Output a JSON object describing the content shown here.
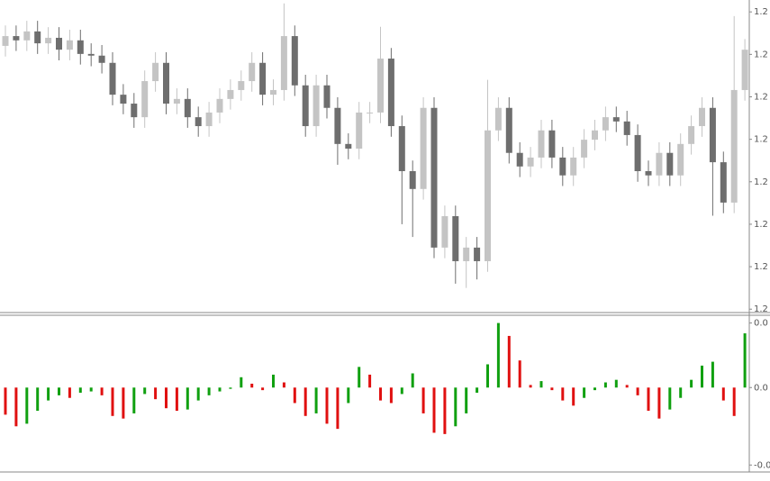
{
  "chart_data": [
    {
      "type": "candlestick",
      "open": [
        1.2282,
        1.22843,
        1.22833,
        1.22854,
        1.22826,
        1.22839,
        1.22811,
        1.22833,
        1.22801,
        1.22797,
        1.2278,
        1.22705,
        1.22684,
        1.22652,
        1.22737,
        1.2278,
        1.22684,
        1.22695,
        1.22652,
        1.22631,
        1.22663,
        1.22695,
        1.22716,
        1.22737,
        1.2278,
        1.22705,
        1.22716,
        1.22843,
        1.22727,
        1.22631,
        1.22727,
        1.22674,
        1.22589,
        1.22578,
        1.22663,
        1.22663,
        1.2279,
        1.22631,
        1.22525,
        1.22483,
        1.22674,
        1.22345,
        1.22419,
        1.22313,
        1.22345,
        1.22313,
        1.22621,
        1.22674,
        1.22568,
        1.22536,
        1.22557,
        1.22621,
        1.22557,
        1.22515,
        1.22557,
        1.22599,
        1.22621,
        1.22652,
        1.22642,
        1.2261,
        1.22525,
        1.22515,
        1.22568,
        1.22515,
        1.22589,
        1.22631,
        1.22674,
        1.22546,
        1.22451,
        1.22716
      ],
      "high": [
        1.22868,
        1.22868,
        1.22879,
        1.22879,
        1.22864,
        1.22864,
        1.22858,
        1.22858,
        1.22826,
        1.22822,
        1.22805,
        1.2273,
        1.22709,
        1.22762,
        1.22805,
        1.22805,
        1.2272,
        1.2272,
        1.22677,
        1.22688,
        1.2272,
        1.22741,
        1.22762,
        1.22805,
        1.22805,
        1.22741,
        1.2292,
        1.22868,
        1.22752,
        1.22752,
        1.22752,
        1.22699,
        1.22614,
        1.22688,
        1.22688,
        1.22865,
        1.22815,
        1.22656,
        1.2255,
        1.22699,
        1.22699,
        1.22444,
        1.22444,
        1.2237,
        1.2237,
        1.2274,
        1.22699,
        1.22699,
        1.22593,
        1.22582,
        1.22646,
        1.22646,
        1.22582,
        1.22582,
        1.22624,
        1.22646,
        1.22677,
        1.22677,
        1.22667,
        1.22635,
        1.2255,
        1.22593,
        1.22593,
        1.22614,
        1.22656,
        1.22699,
        1.22699,
        1.22571,
        1.2289,
        1.22836
      ],
      "low": [
        1.22795,
        1.22808,
        1.22808,
        1.22801,
        1.22801,
        1.22786,
        1.22786,
        1.22776,
        1.22772,
        1.22755,
        1.2268,
        1.22659,
        1.22627,
        1.22627,
        1.22712,
        1.22659,
        1.22659,
        1.22627,
        1.22606,
        1.22606,
        1.22638,
        1.2267,
        1.22691,
        1.22712,
        1.2268,
        1.2268,
        1.22691,
        1.22702,
        1.22606,
        1.22606,
        1.22649,
        1.2254,
        1.22553,
        1.22553,
        1.22638,
        1.22638,
        1.22606,
        1.224,
        1.2237,
        1.22458,
        1.2232,
        1.2232,
        1.2226,
        1.2225,
        1.2227,
        1.22288,
        1.22596,
        1.22543,
        1.22511,
        1.22511,
        1.22532,
        1.22532,
        1.2249,
        1.2249,
        1.22532,
        1.22574,
        1.22596,
        1.22617,
        1.22585,
        1.225,
        1.2249,
        1.2249,
        1.2249,
        1.2249,
        1.22564,
        1.22606,
        1.2242,
        1.22426,
        1.22426,
        1.22691
      ],
      "close": [
        1.22843,
        1.22833,
        1.22854,
        1.22826,
        1.22839,
        1.22811,
        1.22833,
        1.22801,
        1.22797,
        1.2278,
        1.22705,
        1.22684,
        1.22652,
        1.22737,
        1.2278,
        1.22684,
        1.22695,
        1.22652,
        1.22631,
        1.22663,
        1.22695,
        1.22716,
        1.22737,
        1.2278,
        1.22705,
        1.22716,
        1.22843,
        1.22727,
        1.22631,
        1.22727,
        1.22674,
        1.22589,
        1.22578,
        1.22663,
        1.22663,
        1.2279,
        1.22631,
        1.22525,
        1.22483,
        1.22674,
        1.22345,
        1.22419,
        1.22313,
        1.22345,
        1.22313,
        1.22621,
        1.22674,
        1.22568,
        1.22536,
        1.22557,
        1.22621,
        1.22557,
        1.22515,
        1.22557,
        1.22599,
        1.22621,
        1.22652,
        1.22642,
        1.2261,
        1.22525,
        1.22515,
        1.22568,
        1.22515,
        1.22589,
        1.22631,
        1.22674,
        1.22546,
        1.22451,
        1.22716,
        1.22811
      ],
      "up_color": "#c4c4c4",
      "down_color": "#6e6e6e",
      "ylim": [
        1.22192,
        1.22928
      ],
      "yticks": [
        {
          "value": 1.229,
          "label": "1.2"
        },
        {
          "value": 1.228,
          "label": "1.2"
        },
        {
          "value": 1.227,
          "label": "1.2"
        },
        {
          "value": 1.226,
          "label": "1.2"
        },
        {
          "value": 1.225,
          "label": "1.2"
        },
        {
          "value": 1.224,
          "label": "1.2"
        },
        {
          "value": 1.223,
          "label": "1.2"
        },
        {
          "value": 1.222,
          "label": "1.2"
        }
      ]
    },
    {
      "type": "bar",
      "values": [
        -0.00021,
        -0.0003,
        -0.00028,
        -0.00018,
        -0.0001,
        -6e-05,
        -8e-05,
        -4e-05,
        -3e-05,
        -6e-05,
        -0.00022,
        -0.00024,
        -0.0002,
        -5e-05,
        -9e-05,
        -0.00016,
        -0.00018,
        -0.00017,
        -0.0001,
        -6e-05,
        -3e-05,
        -1e-05,
        8e-05,
        3e-05,
        -2e-05,
        0.0001,
        4e-05,
        -0.00012,
        -0.00022,
        -0.0002,
        -0.00028,
        -0.00032,
        -0.00012,
        0.00016,
        0.0001,
        -0.0001,
        -0.00012,
        -5e-05,
        0.00011,
        -0.0002,
        -0.00035,
        -0.00036,
        -0.0003,
        -0.0002,
        -4e-05,
        0.00018,
        0.0005,
        0.0004,
        0.00021,
        2e-05,
        5e-05,
        -2e-05,
        -0.0001,
        -0.00014,
        -8e-05,
        -2e-05,
        4e-05,
        6e-05,
        2e-05,
        -6e-05,
        -0.00018,
        -0.00024,
        -0.00017,
        -8e-05,
        6e-05,
        0.00017,
        0.0002,
        -0.0001,
        -0.00022,
        0.00042
      ],
      "up_color": "#10a010",
      "down_color": "#e01010",
      "ylim": [
        -0.00064,
        0.00056
      ],
      "yticks": [
        {
          "value": 0.0005,
          "label": "0.0"
        },
        {
          "value": 0,
          "label": "0.0"
        },
        {
          "value": -0.0006,
          "label": "-0.0"
        }
      ]
    }
  ]
}
